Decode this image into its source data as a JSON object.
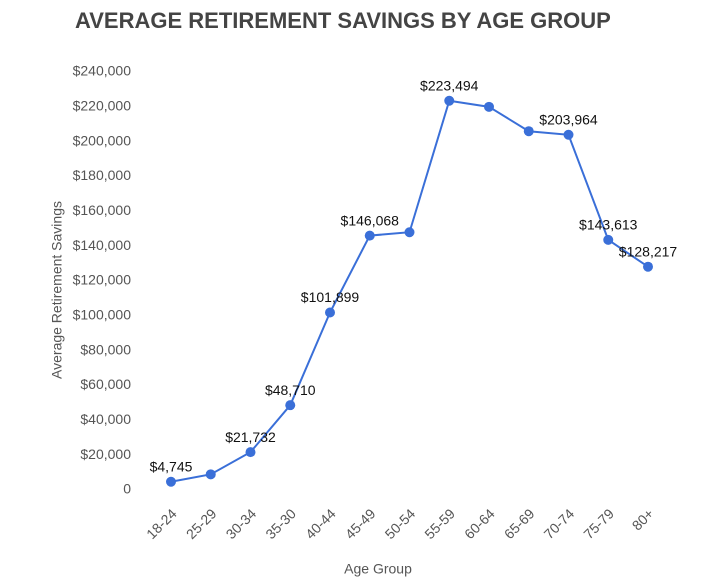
{
  "chart_data": {
    "type": "line",
    "title": "AVERAGE RETIREMENT SAVINGS BY AGE GROUP",
    "x_label": "Age Group",
    "y_label": "Average Retirement Savings",
    "categories": [
      "18-24",
      "25-29",
      "30-34",
      "35-30",
      "40-44",
      "45-49",
      "50-54",
      "55-59",
      "60-64",
      "65-69",
      "70-74",
      "75-79",
      "80+"
    ],
    "series": [
      {
        "name": "Average Retirement Savings",
        "color": "#3a6fd8",
        "values": [
          4745,
          9000,
          21732,
          48710,
          101899,
          146068,
          148000,
          223494,
          220000,
          206000,
          203964,
          143613,
          128217
        ],
        "value_labels": [
          "$4,745",
          null,
          "$21,732",
          "$48,710",
          "$101,899",
          "$146,068",
          null,
          "$223,494",
          null,
          null,
          "$203,964",
          "$143,613",
          "$128,217"
        ]
      }
    ],
    "ylim": [
      0,
      240000
    ],
    "yticks": [
      0,
      {
        "value": 20000,
        "label": "$20,000"
      },
      {
        "value": 40000,
        "label": "$40,000"
      },
      {
        "value": 60000,
        "label": "$60,000"
      },
      {
        "value": 80000,
        "label": "$80,000"
      },
      {
        "value": 100000,
        "label": "$100,000"
      },
      {
        "value": 120000,
        "label": "$120,000"
      },
      {
        "value": 140000,
        "label": "$140,000"
      },
      {
        "value": 160000,
        "label": "$160,000"
      },
      {
        "value": 180000,
        "label": "$180,000"
      },
      {
        "value": 200000,
        "label": "$200,000"
      },
      {
        "value": 220000,
        "label": "$220,000"
      },
      {
        "value": 240000,
        "label": "$240,000"
      }
    ],
    "grid": false
  }
}
